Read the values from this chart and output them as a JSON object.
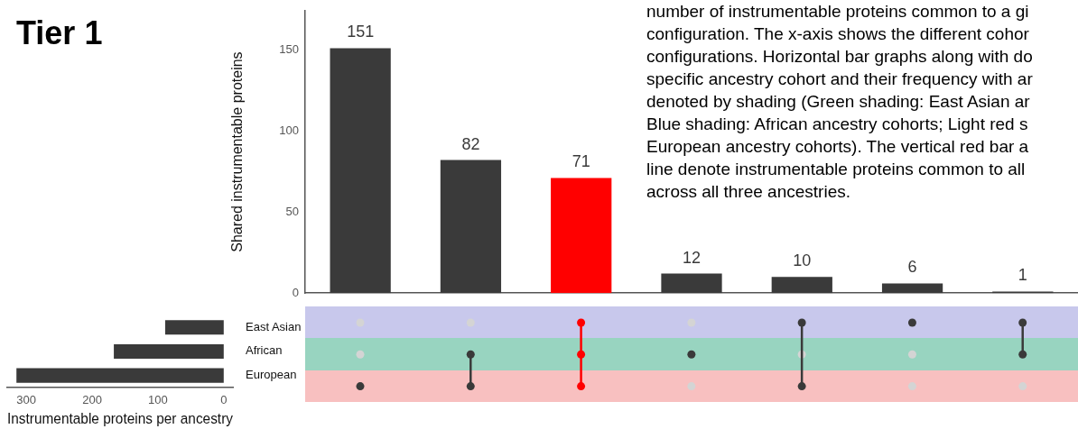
{
  "chart_data": [
    {
      "type": "bar",
      "title": "Tier 1",
      "ylabel": "Shared instrumentable proteins",
      "categories": [
        null,
        null,
        null,
        null,
        null,
        null,
        null
      ],
      "values": [
        151,
        82,
        71,
        12,
        10,
        6,
        1
      ],
      "colors": [
        "#3a3a3a",
        "#3a3a3a",
        "#ff0000",
        "#3a3a3a",
        "#3a3a3a",
        "#3a3a3a",
        "#3a3a3a"
      ],
      "ylim": [
        0,
        174
      ],
      "yticks": [
        0,
        50,
        100,
        150
      ],
      "data_labels": true,
      "grid": false,
      "legend": false,
      "tick_labels": "y",
      "annotations": [
        "number of instrumentable proteins common to a gi",
        "configuration. The x-axis shows the different cohor",
        "configurations. Horizontal bar graphs along with do",
        "specific ancestry cohort and their frequency with ar",
        "denoted by shading (Green shading: East Asian ar",
        "Blue shading: African ancestry cohorts; Light red s",
        "European ancestry cohorts). The vertical red bar a",
        "line denote instrumentable proteins common to all",
        "across all three ancestries."
      ]
    },
    {
      "type": "bar",
      "orientation": "horizontal",
      "xlabel": "Instrumentable proteins per ancestry",
      "categories": [
        "East Asian",
        "African",
        "European"
      ],
      "values": [
        89,
        167,
        315
      ],
      "color": "#3a3a3a",
      "xlim": [
        329,
        -14
      ],
      "xticks": [
        300,
        200,
        100,
        0
      ],
      "grid": false,
      "legend": false
    }
  ]
}
